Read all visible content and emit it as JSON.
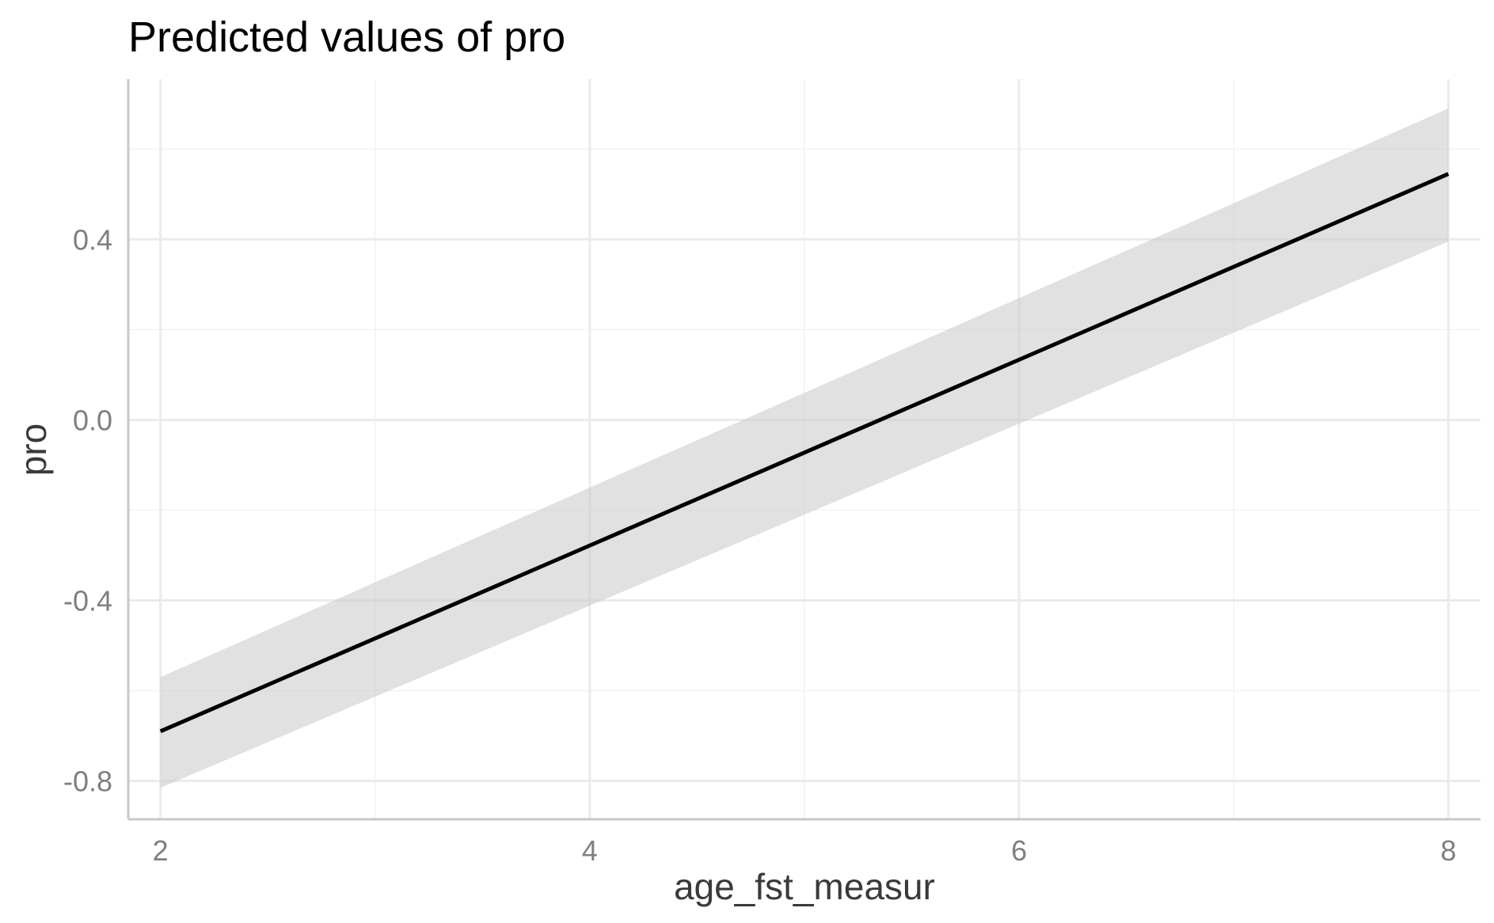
{
  "chart_data": {
    "type": "line",
    "title": "Predicted values of pro",
    "xlabel": "age_fst_measur",
    "ylabel": "pro",
    "xlim": [
      1.85,
      8.15
    ],
    "ylim": [
      -0.885,
      0.755
    ],
    "x_ticks": [
      2,
      4,
      6,
      8
    ],
    "x_tick_labels": [
      "2",
      "4",
      "6",
      "8"
    ],
    "x_minor_ticks": [
      3,
      5,
      7
    ],
    "y_ticks": [
      -0.8,
      -0.4,
      0.0,
      0.4
    ],
    "y_tick_labels": [
      "-0.8",
      "-0.4",
      "0.0",
      "0.4"
    ],
    "y_minor_ticks": [
      -0.6,
      -0.2,
      0.2,
      0.6
    ],
    "grid": true,
    "legend": "none",
    "series": [
      {
        "x": [
          2,
          8
        ],
        "y": [
          -0.69,
          0.545
        ],
        "ci_low": [
          -0.815,
          0.395
        ],
        "ci_high": [
          -0.57,
          0.69
        ],
        "color": "#000000",
        "band_color": "#c8c8c8"
      }
    ]
  }
}
